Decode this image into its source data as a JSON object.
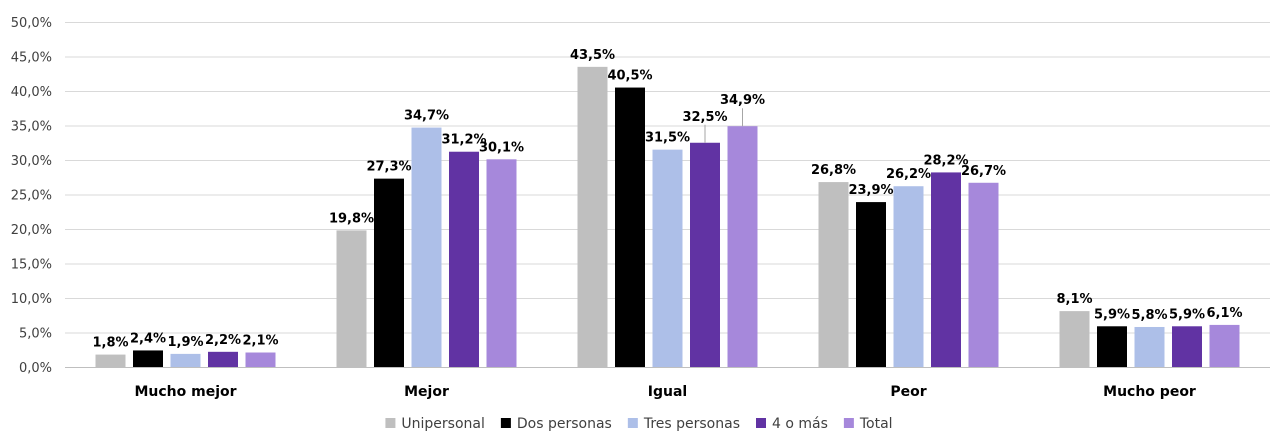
{
  "chart_data": {
    "type": "bar",
    "categories": [
      "Mucho mejor",
      "Mejor",
      "Igual",
      "Peor",
      "Mucho peor"
    ],
    "series": [
      {
        "name": "Unipersonal",
        "color": "#bfbfbf",
        "values": [
          1.8,
          19.8,
          43.5,
          26.8,
          8.1
        ],
        "labels": [
          "1,8%",
          "19,8%",
          "43,5%",
          "26,8%",
          "8,1%"
        ]
      },
      {
        "name": "Dos personas",
        "color": "#000000",
        "values": [
          2.4,
          27.3,
          40.5,
          23.9,
          5.9
        ],
        "labels": [
          "2,4%",
          "27,3%",
          "40,5%",
          "23,9%",
          "5,9%"
        ]
      },
      {
        "name": "Tres personas",
        "color": "#adbfe8",
        "values": [
          1.9,
          34.7,
          31.5,
          26.2,
          5.8
        ],
        "labels": [
          "1,9%",
          "34,7%",
          "31,5%",
          "26,2%",
          "5,8%"
        ]
      },
      {
        "name": "4 o más",
        "color": "#6133a3",
        "values": [
          2.2,
          31.2,
          32.5,
          28.2,
          5.9
        ],
        "labels": [
          "2,2%",
          "31,2%",
          "32,5%",
          "28,2%",
          "5,9%"
        ]
      },
      {
        "name": "Total",
        "color": "#a688db",
        "values": [
          2.1,
          30.1,
          34.9,
          26.7,
          6.1
        ],
        "labels": [
          "2,1%",
          "30,1%",
          "34,9%",
          "26,7%",
          "6,1%"
        ]
      }
    ],
    "ylim": [
      0,
      50
    ],
    "yticks": [
      0,
      5,
      10,
      15,
      20,
      25,
      30,
      35,
      40,
      45,
      50
    ],
    "ytick_labels": [
      "0,0%",
      "5,0%",
      "10,0%",
      "15,0%",
      "20,0%",
      "25,0%",
      "30,0%",
      "35,0%",
      "40,0%",
      "45,0%",
      "50,0%"
    ],
    "grid": true,
    "legend_position": "bottom",
    "title": "",
    "xlabel": "",
    "ylabel": ""
  }
}
